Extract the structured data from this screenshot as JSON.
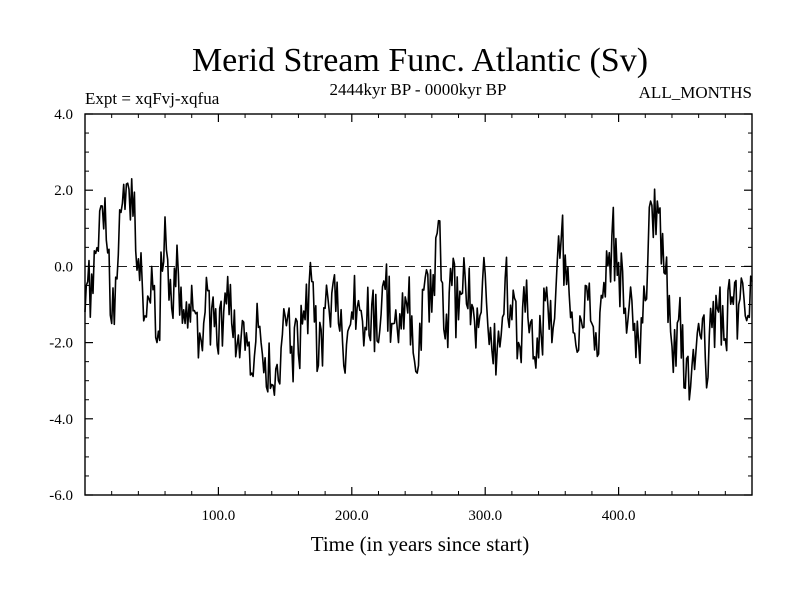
{
  "chart_data": {
    "type": "line",
    "title": "Merid Stream Func. Atlantic (Sv)",
    "subtitle_left": "Expt = xqFvj-xqfua",
    "subtitle_center": "2444kyr BP - 0000kyr BP",
    "subtitle_right": "ALL_MONTHS",
    "xlabel": "Time (in years since start)",
    "ylabel": "",
    "xlim": [
      0,
      500
    ],
    "ylim": [
      -6.0,
      4.0
    ],
    "xticks": [
      100.0,
      200.0,
      300.0,
      400.0
    ],
    "xtick_labels": [
      "100.0",
      "200.0",
      "300.0",
      "400.0"
    ],
    "yticks": [
      -6.0,
      -4.0,
      -2.0,
      0.0,
      2.0,
      4.0
    ],
    "ytick_labels": [
      "-6.0",
      "-4.0",
      "-2.0",
      "0.0",
      "2.0",
      "4.0"
    ],
    "reference_line": {
      "y": 0.0,
      "style": "dashed"
    },
    "grid": false,
    "series": [
      {
        "name": "Merid Stream Func. Atlantic",
        "x": [
          0,
          5,
          10,
          15,
          20,
          25,
          30,
          35,
          40,
          45,
          50,
          55,
          60,
          65,
          70,
          75,
          80,
          85,
          90,
          95,
          100,
          105,
          110,
          115,
          120,
          125,
          130,
          135,
          140,
          145,
          150,
          155,
          160,
          165,
          170,
          175,
          180,
          185,
          190,
          195,
          200,
          205,
          210,
          215,
          220,
          225,
          230,
          235,
          240,
          245,
          250,
          255,
          260,
          265,
          270,
          275,
          280,
          285,
          290,
          295,
          300,
          305,
          310,
          315,
          320,
          325,
          330,
          335,
          340,
          345,
          350,
          355,
          360,
          365,
          370,
          375,
          380,
          385,
          390,
          395,
          400,
          405,
          410,
          415,
          420,
          425,
          430,
          435,
          440,
          445,
          450,
          455,
          460,
          465,
          470,
          475,
          480,
          485,
          490,
          495,
          500
        ],
        "values": [
          -1.2,
          -0.2,
          0.4,
          1.8,
          -1.5,
          0.3,
          1.5,
          2.3,
          0.2,
          -1.3,
          0.0,
          -1.7,
          1.3,
          -1.1,
          -0.2,
          -1.5,
          -0.5,
          -2.4,
          -1.2,
          -1.1,
          -2.3,
          -0.7,
          -1.5,
          -1.8,
          -2.2,
          -2.8,
          -1.6,
          -2.4,
          -3.1,
          -3.0,
          -1.3,
          -2.1,
          -2.3,
          -1.4,
          -0.4,
          -2.6,
          -1.1,
          -0.7,
          -1.5,
          -2.8,
          -1.2,
          -0.9,
          -1.6,
          -1.0,
          -2.0,
          -0.6,
          -1.5,
          -2.0,
          -0.8,
          -1.3,
          -2.6,
          -0.3,
          -1.2,
          1.2,
          -1.9,
          -0.5,
          -1.4,
          -0.3,
          -1.0,
          -1.6,
          -0.2,
          -2.2,
          -1.7,
          -0.3,
          -1.4,
          -2.0,
          -1.2,
          -1.4,
          -2.4,
          -0.9,
          -2.0,
          0.8,
          0.3,
          -1.2,
          -2.2,
          -0.5,
          -1.5,
          -2.3,
          -0.8,
          0.8,
          0.1,
          -1.1,
          -0.9,
          -2.0,
          -0.9,
          1.6,
          1.4,
          -0.2,
          -2.1,
          -1.4,
          -3.2,
          -2.6,
          -1.5,
          -2.4,
          -1.6,
          -1.2,
          -1.9,
          -0.8,
          -1.0,
          -1.3,
          -0.4
        ]
      }
    ]
  }
}
